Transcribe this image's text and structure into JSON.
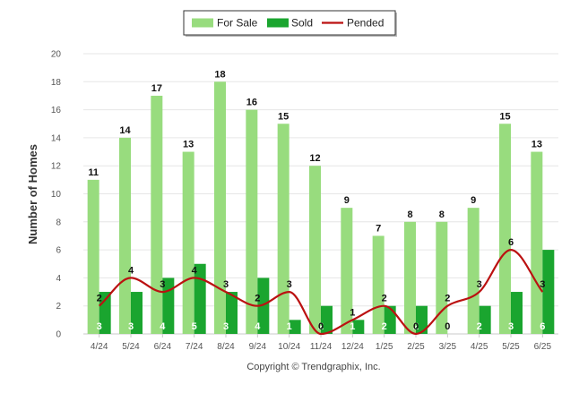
{
  "chart_data": {
    "type": "bar",
    "categories": [
      "4/24",
      "5/24",
      "6/24",
      "7/24",
      "8/24",
      "9/24",
      "10/24",
      "11/24",
      "12/24",
      "1/25",
      "2/25",
      "3/25",
      "4/25",
      "5/25",
      "6/25"
    ],
    "series": [
      {
        "name": "For Sale",
        "kind": "bar",
        "color": "#98dc7e",
        "values": [
          11,
          14,
          17,
          13,
          18,
          16,
          15,
          12,
          9,
          7,
          8,
          8,
          9,
          15,
          13
        ]
      },
      {
        "name": "Sold",
        "kind": "bar",
        "color": "#1aa52f",
        "values": [
          3,
          3,
          4,
          5,
          3,
          4,
          1,
          2,
          1,
          2,
          2,
          0,
          2,
          3,
          6
        ]
      },
      {
        "name": "Pended",
        "kind": "line",
        "color": "#bb1111",
        "values": [
          2,
          4,
          3,
          4,
          3,
          2,
          3,
          0,
          1,
          2,
          0,
          2,
          3,
          6,
          3
        ]
      }
    ],
    "ylabel": "Number of Homes",
    "xlabel": "",
    "ylim": [
      0,
      20
    ],
    "yticks": [
      0,
      2,
      4,
      6,
      8,
      10,
      12,
      14,
      16,
      18,
      20
    ],
    "legend_position": "top-center",
    "grid": true
  },
  "footer": {
    "copyright": "Copyright © Trendgraphix, Inc."
  }
}
